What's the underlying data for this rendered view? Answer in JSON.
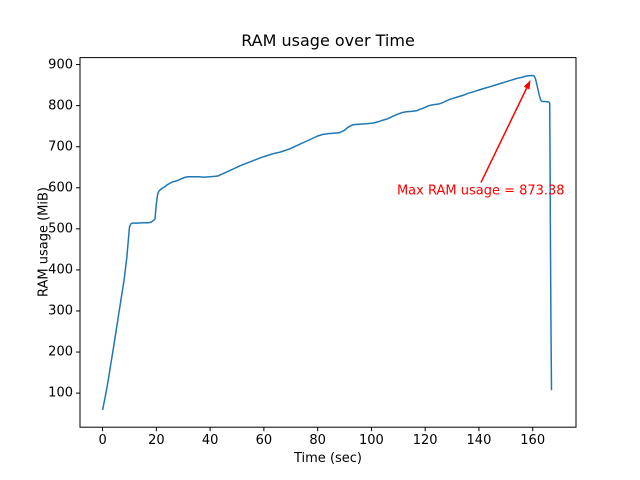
{
  "chart_data": {
    "type": "line",
    "title": "RAM usage over Time",
    "xlabel": "Time (sec)",
    "ylabel": "RAM usage (MiB)",
    "x_ticks": [
      0,
      20,
      40,
      60,
      80,
      100,
      120,
      140,
      160
    ],
    "y_ticks": [
      100,
      200,
      300,
      400,
      500,
      600,
      700,
      800,
      900
    ],
    "xlim": [
      -8.4,
      176.1
    ],
    "ylim": [
      17,
      917
    ],
    "grid": false,
    "legend": false,
    "background": "#ffffff",
    "axis_color": "#000000",
    "line_color": "#1f77b4",
    "annotation": {
      "text": "Max RAM usage = 873.38",
      "color": "#ff0000",
      "arrow_tip_xy": [
        160,
        873.38
      ],
      "text_anchor_xy": [
        109.5,
        592
      ]
    },
    "series": [
      {
        "name": "ram_usage",
        "points": [
          [
            0,
            59
          ],
          [
            1,
            92
          ],
          [
            2,
            128
          ],
          [
            3,
            168
          ],
          [
            4,
            208
          ],
          [
            5,
            250
          ],
          [
            6,
            292
          ],
          [
            7,
            334
          ],
          [
            8,
            376
          ],
          [
            9,
            430
          ],
          [
            10,
            505
          ],
          [
            10.5,
            512
          ],
          [
            11,
            514
          ],
          [
            13,
            514
          ],
          [
            15,
            515
          ],
          [
            17,
            515
          ],
          [
            18,
            516
          ],
          [
            19,
            521
          ],
          [
            19.5,
            524
          ],
          [
            20,
            560
          ],
          [
            20.5,
            585
          ],
          [
            21,
            592
          ],
          [
            22,
            598
          ],
          [
            23,
            602
          ],
          [
            24,
            607
          ],
          [
            25,
            611
          ],
          [
            26,
            614
          ],
          [
            27,
            616
          ],
          [
            28,
            618
          ],
          [
            29,
            621
          ],
          [
            30,
            624
          ],
          [
            31,
            626
          ],
          [
            32,
            627
          ],
          [
            34,
            627
          ],
          [
            36,
            627
          ],
          [
            37,
            626
          ],
          [
            38,
            626
          ],
          [
            40,
            627
          ],
          [
            42,
            628
          ],
          [
            43,
            629
          ],
          [
            44,
            632
          ],
          [
            45,
            635
          ],
          [
            46,
            638
          ],
          [
            47,
            641
          ],
          [
            48,
            644
          ],
          [
            49,
            647
          ],
          [
            50,
            650
          ],
          [
            52,
            656
          ],
          [
            54,
            661
          ],
          [
            56,
            666
          ],
          [
            58,
            671
          ],
          [
            60,
            676
          ],
          [
            62,
            680
          ],
          [
            64,
            684
          ],
          [
            66,
            687
          ],
          [
            68,
            691
          ],
          [
            70,
            696
          ],
          [
            72,
            702
          ],
          [
            74,
            708
          ],
          [
            76,
            714
          ],
          [
            78,
            720
          ],
          [
            80,
            726
          ],
          [
            82,
            730
          ],
          [
            84,
            732
          ],
          [
            86,
            733
          ],
          [
            88,
            734
          ],
          [
            90,
            740
          ],
          [
            91,
            746
          ],
          [
            92,
            750
          ],
          [
            93,
            753
          ],
          [
            94,
            754
          ],
          [
            96,
            755
          ],
          [
            98,
            756
          ],
          [
            100,
            757
          ],
          [
            101,
            758
          ],
          [
            102,
            760
          ],
          [
            103,
            762
          ],
          [
            104,
            764
          ],
          [
            105,
            766
          ],
          [
            106,
            768
          ],
          [
            107,
            771
          ],
          [
            108,
            774
          ],
          [
            109,
            777
          ],
          [
            110,
            780
          ],
          [
            111,
            782
          ],
          [
            112,
            784
          ],
          [
            113,
            785
          ],
          [
            115,
            786
          ],
          [
            116,
            787
          ],
          [
            117,
            788
          ],
          [
            118,
            791
          ],
          [
            119,
            793
          ],
          [
            120,
            796
          ],
          [
            121,
            799
          ],
          [
            122,
            801
          ],
          [
            123,
            802
          ],
          [
            124,
            803
          ],
          [
            125,
            804
          ],
          [
            126,
            806
          ],
          [
            127,
            809
          ],
          [
            128,
            812
          ],
          [
            129,
            815
          ],
          [
            130,
            817
          ],
          [
            132,
            821
          ],
          [
            134,
            825
          ],
          [
            136,
            830
          ],
          [
            138,
            834
          ],
          [
            140,
            838
          ],
          [
            142,
            842
          ],
          [
            144,
            846
          ],
          [
            146,
            850
          ],
          [
            148,
            854
          ],
          [
            150,
            858
          ],
          [
            152,
            862
          ],
          [
            154,
            866
          ],
          [
            156,
            869
          ],
          [
            157,
            871
          ],
          [
            158,
            872.5
          ],
          [
            159,
            873.1
          ],
          [
            160,
            873.38
          ],
          [
            160.5,
            872
          ],
          [
            161,
            866
          ],
          [
            161.5,
            852
          ],
          [
            162,
            838
          ],
          [
            162.5,
            824
          ],
          [
            163,
            813
          ],
          [
            163.5,
            810
          ],
          [
            164.5,
            810
          ],
          [
            166,
            809
          ],
          [
            166.3,
            806
          ],
          [
            166.45,
            650
          ],
          [
            166.6,
            450
          ],
          [
            166.8,
            250
          ],
          [
            167,
            107
          ]
        ]
      }
    ]
  }
}
